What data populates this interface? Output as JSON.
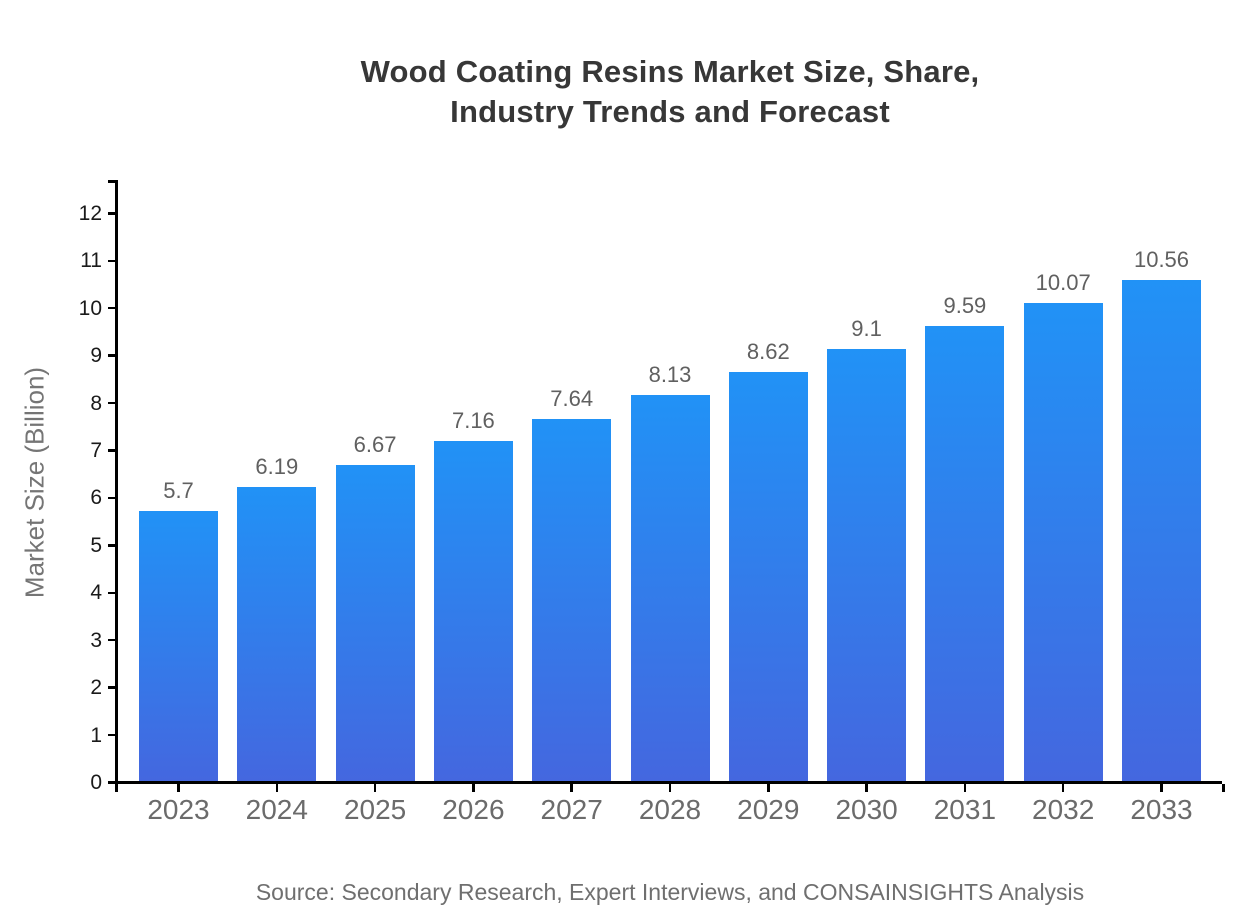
{
  "title": {
    "line1": "Wood Coating Resins Market Size, Share,",
    "line2": "Industry Trends and Forecast"
  },
  "source": "Source: Secondary Research, Expert Interviews, and CONSAINSIGHTS Analysis",
  "chart_data": {
    "type": "bar",
    "title": "Wood Coating Resins Market Size, Share, Industry Trends and Forecast",
    "categories": [
      "2023",
      "2024",
      "2025",
      "2026",
      "2027",
      "2028",
      "2029",
      "2030",
      "2031",
      "2032",
      "2033"
    ],
    "values": [
      5.7,
      6.19,
      6.67,
      7.16,
      7.64,
      8.13,
      8.62,
      9.1,
      9.59,
      10.07,
      10.56
    ],
    "value_labels": [
      "5.7",
      "6.19",
      "6.67",
      "7.16",
      "7.64",
      "8.13",
      "8.62",
      "9.1",
      "9.59",
      "10.07",
      "10.56"
    ],
    "xlabel": "",
    "ylabel": "Market Size (Billion)",
    "ylim": [
      0,
      12.672
    ],
    "yticks": [
      0,
      1,
      2,
      3,
      4,
      5,
      6,
      7,
      8,
      9,
      10,
      11,
      12
    ],
    "grid": false,
    "legend_position": "none",
    "bar_gradient_top": "#2192f6",
    "bar_gradient_bottom": "#4467df"
  },
  "colors": {
    "axis": "#000000",
    "title_text": "#373737",
    "y_tick_text": "#1a1a1a",
    "x_tick_text": "#6b6b6b",
    "value_label_text": "#606060",
    "axis_title_text": "#757575",
    "source_text": "#6f6f6f",
    "background": "#ffffff"
  }
}
